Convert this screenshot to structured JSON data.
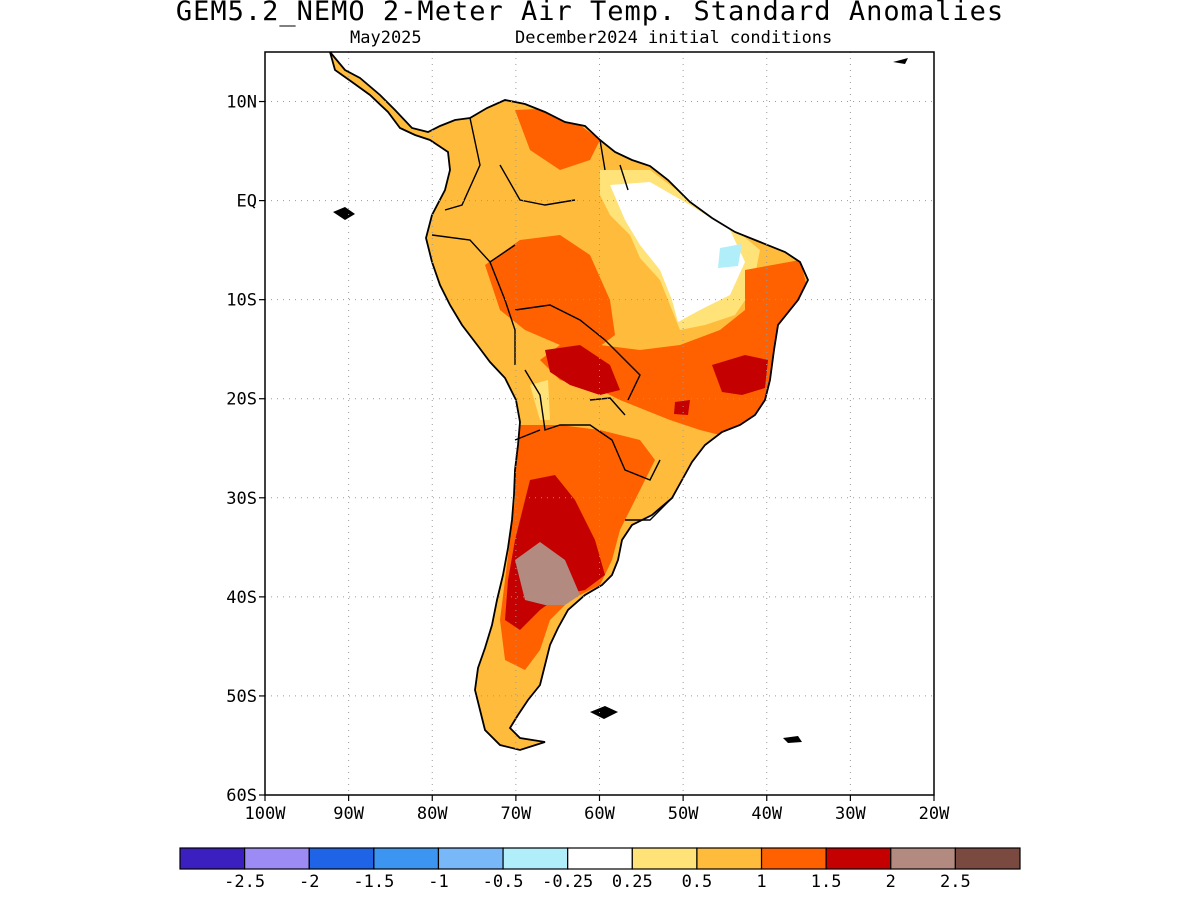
{
  "title": "GEM5.2_NEMO 2-Meter Air Temp. Standard Anomalies",
  "subtitle_month": "May2025",
  "subtitle_ic": "December2024 initial conditions",
  "lat_ticks": [
    {
      "lat": 10,
      "label": "10N"
    },
    {
      "lat": 0,
      "label": "EQ"
    },
    {
      "lat": -10,
      "label": "10S"
    },
    {
      "lat": -20,
      "label": "20S"
    },
    {
      "lat": -30,
      "label": "30S"
    },
    {
      "lat": -40,
      "label": "40S"
    },
    {
      "lat": -50,
      "label": "50S"
    },
    {
      "lat": -60,
      "label": "60S"
    }
  ],
  "lon_ticks": [
    {
      "lon": -100,
      "label": "100W"
    },
    {
      "lon": -90,
      "label": "90W"
    },
    {
      "lon": -80,
      "label": "80W"
    },
    {
      "lon": -70,
      "label": "70W"
    },
    {
      "lon": -60,
      "label": "60W"
    },
    {
      "lon": -50,
      "label": "50W"
    },
    {
      "lon": -40,
      "label": "40W"
    },
    {
      "lon": -30,
      "label": "30W"
    },
    {
      "lon": -20,
      "label": "20W"
    }
  ],
  "extent": {
    "lon": [
      -100,
      -20
    ],
    "lat": [
      -60,
      15
    ]
  },
  "colorbar": {
    "colors": [
      "#3c1fbf",
      "#9d8bf5",
      "#1f63e6",
      "#3c95f0",
      "#78b8f8",
      "#b0eefa",
      "#ffffff",
      "#ffe278",
      "#ffbc3c",
      "#ff6000",
      "#c40000",
      "#b38a80",
      "#7a4a40"
    ],
    "labels": [
      "-2.5",
      "-2",
      "-1.5",
      "-1",
      "-0.5",
      "-0.25",
      "0.25",
      "0.5",
      "1",
      "1.5",
      "2",
      "2.5"
    ]
  }
}
